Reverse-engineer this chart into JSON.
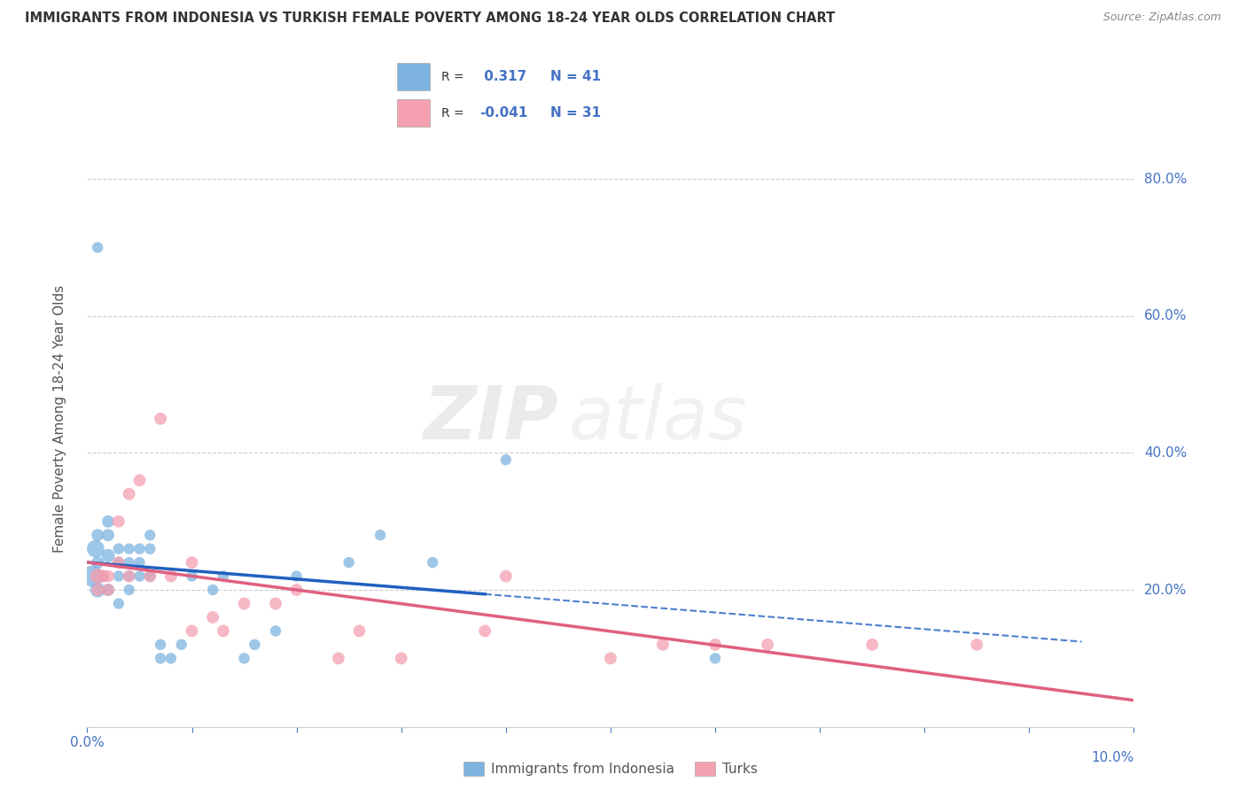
{
  "title": "IMMIGRANTS FROM INDONESIA VS TURKISH FEMALE POVERTY AMONG 18-24 YEAR OLDS CORRELATION CHART",
  "source": "Source: ZipAtlas.com",
  "ylabel": "Female Poverty Among 18-24 Year Olds",
  "legend_labels": [
    "Immigrants from Indonesia",
    "Turks"
  ],
  "r_indonesia": 0.317,
  "n_indonesia": 41,
  "r_turks": -0.041,
  "n_turks": 31,
  "xlim": [
    0.0,
    0.1
  ],
  "ylim": [
    0.0,
    0.9
  ],
  "ytick_positions": [
    0.2,
    0.4,
    0.6,
    0.8
  ],
  "xtick_positions": [
    0.0,
    0.01,
    0.02,
    0.03,
    0.04,
    0.05,
    0.06,
    0.07,
    0.08,
    0.09,
    0.1
  ],
  "color_indonesia": "#7eb3e0",
  "color_turks": "#f4a0b0",
  "line_color_indonesia": "#2060c0",
  "line_color_turks": "#e06080",
  "background_color": "#ffffff",
  "watermark_text": "ZIPatlas",
  "indonesia_scatter": [
    [
      0.0005,
      0.22
    ],
    [
      0.0008,
      0.26
    ],
    [
      0.001,
      0.2
    ],
    [
      0.001,
      0.24
    ],
    [
      0.001,
      0.28
    ],
    [
      0.0015,
      0.22
    ],
    [
      0.002,
      0.25
    ],
    [
      0.002,
      0.28
    ],
    [
      0.002,
      0.2
    ],
    [
      0.002,
      0.3
    ],
    [
      0.003,
      0.26
    ],
    [
      0.003,
      0.22
    ],
    [
      0.003,
      0.18
    ],
    [
      0.003,
      0.24
    ],
    [
      0.004,
      0.26
    ],
    [
      0.004,
      0.22
    ],
    [
      0.004,
      0.24
    ],
    [
      0.004,
      0.2
    ],
    [
      0.005,
      0.24
    ],
    [
      0.005,
      0.22
    ],
    [
      0.005,
      0.26
    ],
    [
      0.006,
      0.22
    ],
    [
      0.006,
      0.26
    ],
    [
      0.006,
      0.28
    ],
    [
      0.007,
      0.1
    ],
    [
      0.007,
      0.12
    ],
    [
      0.008,
      0.1
    ],
    [
      0.009,
      0.12
    ],
    [
      0.01,
      0.22
    ],
    [
      0.012,
      0.2
    ],
    [
      0.013,
      0.22
    ],
    [
      0.015,
      0.1
    ],
    [
      0.016,
      0.12
    ],
    [
      0.018,
      0.14
    ],
    [
      0.02,
      0.22
    ],
    [
      0.025,
      0.24
    ],
    [
      0.028,
      0.28
    ],
    [
      0.033,
      0.24
    ],
    [
      0.04,
      0.39
    ],
    [
      0.001,
      0.7
    ],
    [
      0.06,
      0.1
    ]
  ],
  "indonesia_sizes": [
    300,
    200,
    150,
    100,
    100,
    100,
    120,
    100,
    100,
    100,
    80,
    80,
    80,
    80,
    80,
    80,
    80,
    80,
    80,
    80,
    80,
    80,
    80,
    80,
    80,
    80,
    80,
    80,
    80,
    80,
    80,
    80,
    80,
    80,
    80,
    80,
    80,
    80,
    80,
    80,
    80
  ],
  "turks_scatter": [
    [
      0.001,
      0.22
    ],
    [
      0.001,
      0.2
    ],
    [
      0.0015,
      0.22
    ],
    [
      0.002,
      0.22
    ],
    [
      0.002,
      0.2
    ],
    [
      0.003,
      0.24
    ],
    [
      0.003,
      0.3
    ],
    [
      0.004,
      0.34
    ],
    [
      0.004,
      0.22
    ],
    [
      0.005,
      0.36
    ],
    [
      0.006,
      0.22
    ],
    [
      0.007,
      0.45
    ],
    [
      0.008,
      0.22
    ],
    [
      0.01,
      0.24
    ],
    [
      0.01,
      0.14
    ],
    [
      0.012,
      0.16
    ],
    [
      0.013,
      0.14
    ],
    [
      0.015,
      0.18
    ],
    [
      0.018,
      0.18
    ],
    [
      0.02,
      0.2
    ],
    [
      0.024,
      0.1
    ],
    [
      0.026,
      0.14
    ],
    [
      0.03,
      0.1
    ],
    [
      0.038,
      0.14
    ],
    [
      0.04,
      0.22
    ],
    [
      0.05,
      0.1
    ],
    [
      0.055,
      0.12
    ],
    [
      0.06,
      0.12
    ],
    [
      0.065,
      0.12
    ],
    [
      0.075,
      0.12
    ],
    [
      0.085,
      0.12
    ]
  ],
  "turks_sizes": [
    150,
    100,
    100,
    100,
    100,
    100,
    100,
    100,
    100,
    100,
    100,
    100,
    100,
    100,
    100,
    100,
    100,
    100,
    100,
    100,
    100,
    100,
    100,
    100,
    100,
    100,
    100,
    100,
    100,
    100,
    100
  ]
}
